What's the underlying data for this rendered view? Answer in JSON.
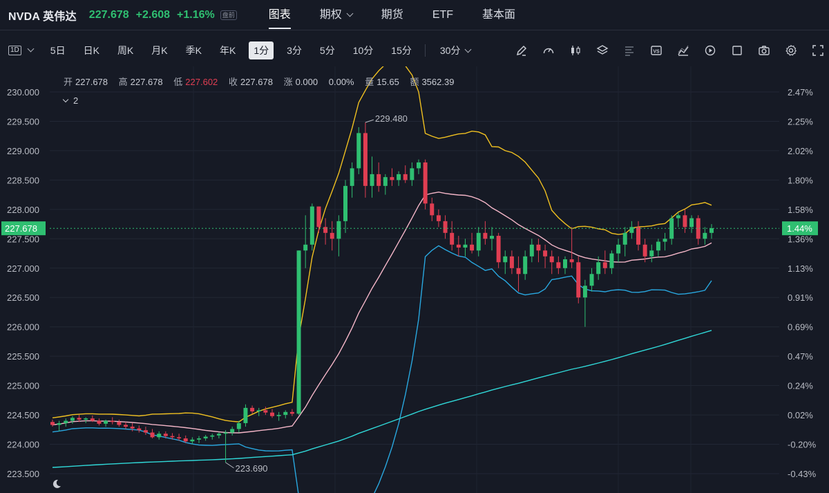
{
  "header": {
    "symbol": "NVDA 英伟达",
    "price": "227.678",
    "change": "+2.608",
    "change_pct": "+1.16%",
    "badge": "盘前",
    "nav": [
      {
        "label": "图表",
        "active": true
      },
      {
        "label": "期权",
        "dropdown": true
      },
      {
        "label": "期货"
      },
      {
        "label": "ETF"
      },
      {
        "label": "基本面"
      }
    ]
  },
  "toolbar": {
    "timeframe_box": "1D",
    "timeframes": [
      "5日",
      "日K",
      "周K",
      "月K",
      "季K",
      "年K",
      "1分",
      "3分",
      "5分",
      "10分",
      "15分"
    ],
    "active_timeframe": "1分",
    "more": "30分",
    "tools": [
      "pencil-icon",
      "gauge-icon",
      "candles-icon",
      "layers-icon",
      "lines-icon",
      "vs-icon",
      "area-chart-icon",
      "replay-icon",
      "square-icon",
      "camera-icon",
      "gear-icon",
      "fullscreen-icon"
    ]
  },
  "info": {
    "open_label": "开",
    "open": "227.678",
    "high_label": "高",
    "high": "227.678",
    "low_label": "低",
    "low": "227.602",
    "close_label": "收",
    "close": "227.678",
    "change_label": "涨",
    "change": "0.000",
    "change_pct": "0.00%",
    "volume_label": "量",
    "volume": "15.65",
    "amount_label": "额",
    "amount": "3562.39",
    "collapse": "2"
  },
  "colors": {
    "up": "#2fbf71",
    "down": "#e03e52",
    "upper_band": "#f0c020",
    "middle_band": "#f4b6c8",
    "lower_band": "#29a8e0",
    "long_ma": "#30d8d8",
    "bg": "#161a25"
  },
  "chart_data": {
    "type": "candlestick",
    "y_left": {
      "range": [
        223.5,
        230.0
      ],
      "ticks": [
        "230.000",
        "229.500",
        "229.000",
        "228.500",
        "228.000",
        "227.500",
        "227.000",
        "226.500",
        "226.000",
        "225.500",
        "225.000",
        "224.500",
        "224.000",
        "223.500"
      ]
    },
    "y_right": {
      "ticks": [
        "2.47%",
        "2.25%",
        "2.02%",
        "1.80%",
        "1.58%",
        "1.36%",
        "1.13%",
        "0.91%",
        "0.69%",
        "0.47%",
        "0.24%",
        "0.02%",
        "-0.20%",
        "-0.43%"
      ]
    },
    "current_price": "227.678",
    "current_pct": "1.44%",
    "high_marker": "229.480",
    "low_marker": "223.690",
    "candles": [
      [
        224.38,
        224.42,
        224.3,
        224.33
      ],
      [
        224.33,
        224.4,
        224.22,
        224.36
      ],
      [
        224.36,
        224.44,
        224.3,
        224.4
      ],
      [
        224.4,
        224.48,
        224.35,
        224.45
      ],
      [
        224.45,
        224.5,
        224.38,
        224.42
      ],
      [
        224.42,
        224.46,
        224.36,
        224.44
      ],
      [
        224.44,
        224.49,
        224.38,
        224.4
      ],
      [
        224.4,
        224.44,
        224.32,
        224.35
      ],
      [
        224.35,
        224.42,
        224.3,
        224.4
      ],
      [
        224.4,
        224.46,
        224.34,
        224.38
      ],
      [
        224.38,
        224.42,
        224.3,
        224.33
      ],
      [
        224.33,
        224.38,
        224.26,
        224.3
      ],
      [
        224.3,
        224.36,
        224.22,
        224.27
      ],
      [
        224.27,
        224.32,
        224.2,
        224.24
      ],
      [
        224.24,
        224.3,
        224.16,
        224.2
      ],
      [
        224.2,
        224.26,
        224.1,
        224.12
      ],
      [
        224.12,
        224.22,
        224.08,
        224.18
      ],
      [
        224.18,
        224.22,
        224.1,
        224.14
      ],
      [
        224.14,
        224.19,
        224.08,
        224.12
      ],
      [
        224.12,
        224.18,
        224.06,
        224.1
      ],
      [
        224.1,
        224.15,
        224.02,
        224.05
      ],
      [
        224.05,
        224.12,
        224.0,
        224.08
      ],
      [
        224.08,
        224.14,
        224.02,
        224.1
      ],
      [
        224.1,
        224.16,
        224.06,
        224.13
      ],
      [
        224.13,
        224.18,
        224.08,
        224.15
      ],
      [
        224.15,
        224.2,
        224.1,
        224.18
      ],
      [
        224.18,
        224.24,
        223.69,
        224.2
      ],
      [
        224.2,
        224.3,
        224.15,
        224.26
      ],
      [
        224.26,
        224.4,
        224.2,
        224.36
      ],
      [
        224.36,
        224.68,
        224.3,
        224.62
      ],
      [
        224.62,
        224.66,
        224.52,
        224.56
      ],
      [
        224.56,
        224.62,
        224.48,
        224.58
      ],
      [
        224.58,
        224.64,
        224.5,
        224.54
      ],
      [
        224.54,
        224.6,
        224.45,
        224.48
      ],
      [
        224.48,
        224.55,
        224.4,
        224.5
      ],
      [
        224.5,
        224.58,
        224.44,
        224.55
      ],
      [
        224.55,
        224.6,
        224.48,
        224.52
      ],
      [
        224.52,
        227.3,
        224.5,
        227.3
      ],
      [
        227.3,
        227.9,
        227.0,
        227.4
      ],
      [
        227.4,
        228.1,
        227.3,
        228.05
      ],
      [
        228.05,
        228.05,
        227.6,
        227.7
      ],
      [
        227.7,
        227.85,
        227.4,
        227.6
      ],
      [
        227.6,
        227.8,
        227.3,
        227.5
      ],
      [
        227.5,
        227.9,
        227.2,
        227.8
      ],
      [
        227.8,
        228.5,
        227.6,
        228.4
      ],
      [
        228.4,
        228.8,
        228.2,
        228.7
      ],
      [
        228.7,
        229.4,
        228.6,
        229.3
      ],
      [
        229.3,
        229.48,
        228.2,
        228.4
      ],
      [
        228.4,
        228.9,
        228.2,
        228.6
      ],
      [
        228.6,
        228.8,
        228.3,
        228.4
      ],
      [
        228.4,
        228.6,
        228.25,
        228.55
      ],
      [
        228.55,
        228.7,
        228.4,
        228.5
      ],
      [
        228.5,
        228.65,
        228.4,
        228.6
      ],
      [
        228.6,
        228.75,
        228.45,
        228.5
      ],
      [
        228.5,
        228.8,
        228.4,
        228.7
      ],
      [
        228.7,
        228.85,
        228.6,
        228.8
      ],
      [
        228.8,
        228.85,
        228.0,
        228.1
      ],
      [
        228.1,
        228.2,
        227.8,
        227.9
      ],
      [
        227.9,
        228.0,
        227.7,
        227.8
      ],
      [
        227.8,
        227.9,
        227.5,
        227.6
      ],
      [
        227.6,
        227.8,
        227.3,
        227.4
      ],
      [
        227.4,
        227.55,
        227.2,
        227.35
      ],
      [
        227.35,
        227.5,
        227.2,
        227.4
      ],
      [
        227.4,
        227.6,
        227.25,
        227.3
      ],
      [
        227.3,
        227.7,
        227.2,
        227.6
      ],
      [
        227.6,
        227.8,
        227.4,
        227.5
      ],
      [
        227.5,
        227.7,
        227.3,
        227.55
      ],
      [
        227.55,
        227.6,
        227.0,
        227.1
      ],
      [
        227.1,
        227.3,
        226.9,
        227.2
      ],
      [
        227.2,
        227.3,
        226.9,
        227.0
      ],
      [
        227.0,
        227.2,
        226.6,
        226.9
      ],
      [
        226.9,
        227.3,
        226.8,
        227.2
      ],
      [
        227.2,
        227.5,
        227.1,
        227.4
      ],
      [
        227.4,
        227.5,
        227.1,
        227.3
      ],
      [
        227.3,
        227.4,
        227.0,
        227.2
      ],
      [
        227.2,
        227.3,
        226.9,
        227.1
      ],
      [
        227.1,
        227.2,
        226.9,
        227.0
      ],
      [
        227.0,
        227.2,
        226.9,
        227.15
      ],
      [
        227.15,
        227.7,
        227.0,
        227.1
      ],
      [
        227.1,
        227.2,
        226.4,
        226.5
      ],
      [
        226.5,
        226.8,
        226.0,
        226.7
      ],
      [
        226.7,
        227.0,
        226.6,
        226.9
      ],
      [
        226.9,
        227.2,
        226.8,
        227.1
      ],
      [
        227.1,
        227.3,
        226.9,
        227.0
      ],
      [
        227.0,
        227.3,
        226.9,
        227.25
      ],
      [
        227.25,
        227.5,
        227.1,
        227.4
      ],
      [
        227.4,
        227.7,
        227.2,
        227.6
      ],
      [
        227.6,
        227.8,
        227.5,
        227.7
      ],
      [
        227.7,
        227.8,
        227.3,
        227.4
      ],
      [
        227.4,
        227.5,
        227.1,
        227.2
      ],
      [
        227.2,
        227.4,
        227.1,
        227.3
      ],
      [
        227.3,
        227.5,
        227.2,
        227.45
      ],
      [
        227.45,
        227.6,
        227.3,
        227.5
      ],
      [
        227.5,
        227.9,
        227.4,
        227.85
      ],
      [
        227.85,
        227.95,
        227.7,
        227.9
      ],
      [
        227.9,
        228.0,
        227.6,
        227.7
      ],
      [
        227.7,
        227.9,
        227.6,
        227.85
      ],
      [
        227.85,
        227.9,
        227.4,
        227.5
      ],
      [
        227.5,
        227.7,
        227.4,
        227.6
      ],
      [
        227.6,
        227.75,
        227.5,
        227.68
      ]
    ]
  }
}
